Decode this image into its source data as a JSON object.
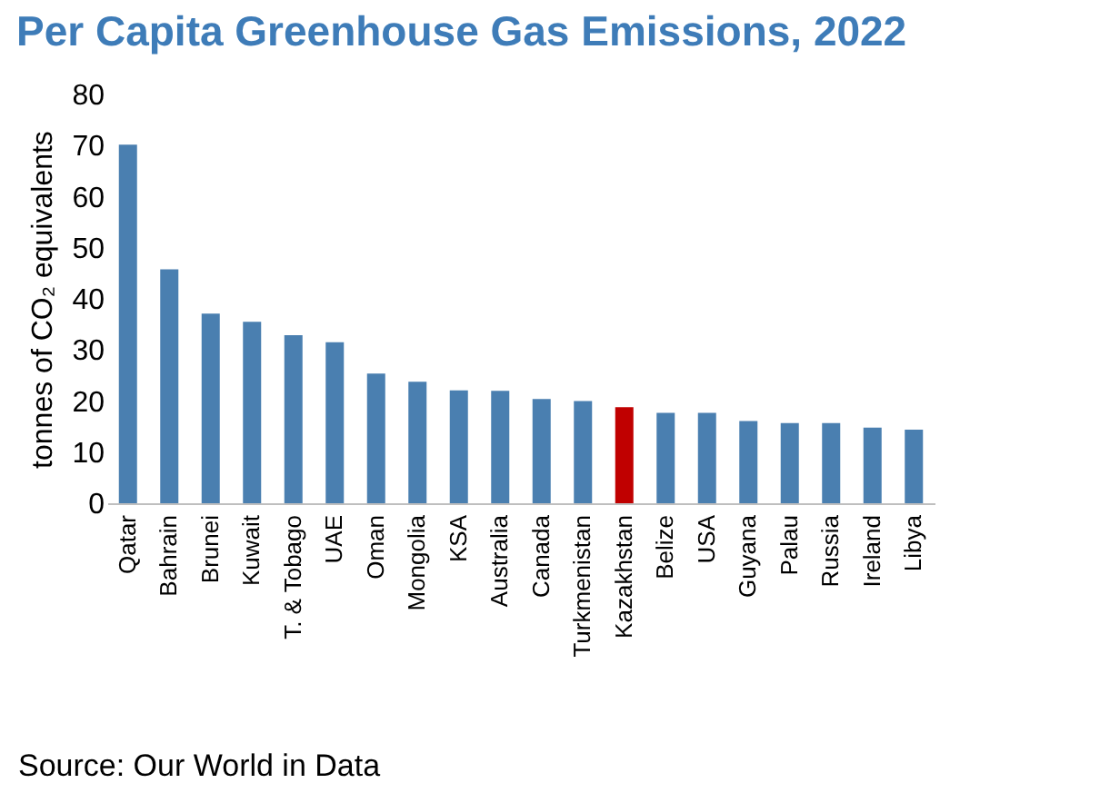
{
  "chart_data": {
    "type": "bar",
    "title": "Per Capita Greenhouse Gas Emissions, 2022",
    "ylabel": "tonnes of CO₂ equivalents",
    "categories": [
      "Qatar",
      "Bahrain",
      "Brunei",
      "Kuwait",
      "T. & Tobago",
      "UAE",
      "Oman",
      "Mongolia",
      "KSA",
      "Australia",
      "Canada",
      "Turkmenistan",
      "Kazakhstan",
      "Belize",
      "USA",
      "Guyana",
      "Palau",
      "Russia",
      "Ireland",
      "Libya"
    ],
    "values": [
      70.2,
      45.8,
      37.1,
      35.5,
      32.9,
      31.5,
      25.4,
      23.8,
      22.1,
      22.0,
      20.4,
      20.0,
      18.8,
      17.7,
      17.7,
      16.1,
      15.7,
      15.7,
      14.8,
      14.4
    ],
    "colors": [
      "#4a7fb0",
      "#4a7fb0",
      "#4a7fb0",
      "#4a7fb0",
      "#4a7fb0",
      "#4a7fb0",
      "#4a7fb0",
      "#4a7fb0",
      "#4a7fb0",
      "#4a7fb0",
      "#4a7fb0",
      "#4a7fb0",
      "#c00000",
      "#4a7fb0",
      "#4a7fb0",
      "#4a7fb0",
      "#4a7fb0",
      "#4a7fb0",
      "#4a7fb0",
      "#4a7fb0"
    ],
    "ylim": [
      0,
      80
    ],
    "yticks": [
      0,
      10,
      20,
      30,
      40,
      50,
      60,
      70,
      80
    ],
    "grid": false,
    "annotations": [
      "Source: Our World in Data"
    ]
  }
}
